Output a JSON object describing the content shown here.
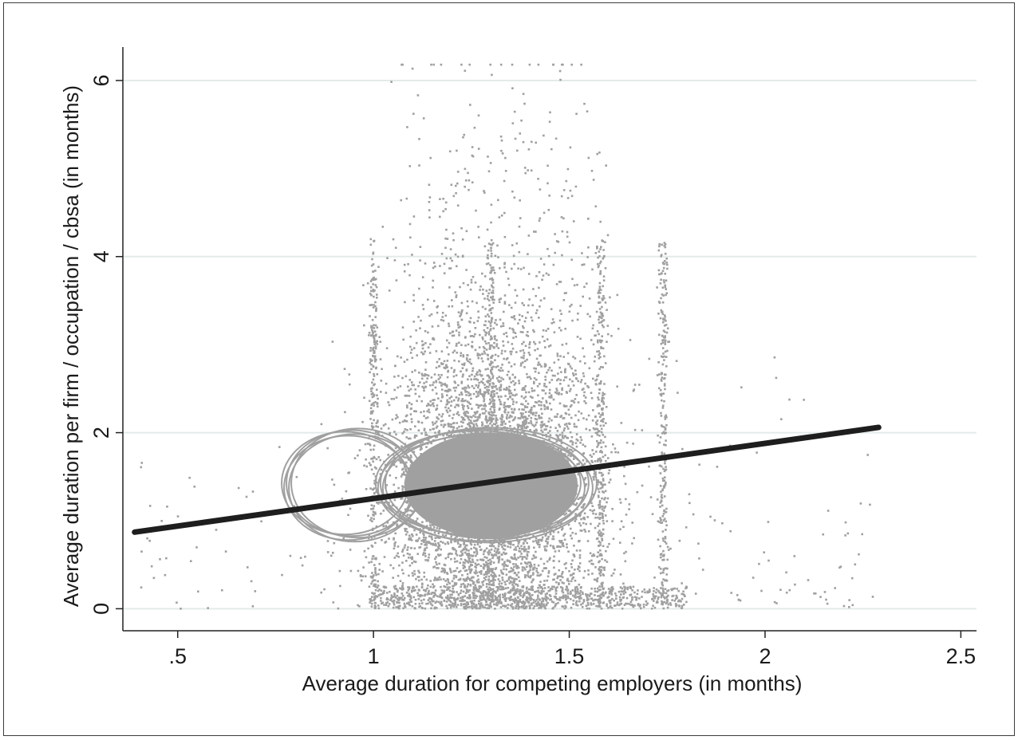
{
  "chart_data": {
    "type": "scatter",
    "title": "",
    "xlabel": "Average duration for competing employers (in months)",
    "ylabel": "Average duration per firm / occupation / cbsa (in months)",
    "xlim": [
      0.36,
      2.54
    ],
    "ylim": [
      -0.25,
      6.38
    ],
    "x_ticks": [
      {
        "value": 0.5,
        "label": ".5"
      },
      {
        "value": 1,
        "label": "1"
      },
      {
        "value": 1.5,
        "label": "1.5"
      },
      {
        "value": 2,
        "label": "2"
      },
      {
        "value": 2.5,
        "label": "2.5"
      }
    ],
    "y_ticks": [
      {
        "value": 0,
        "label": "0"
      },
      {
        "value": 2,
        "label": "2"
      },
      {
        "value": 4,
        "label": "4"
      },
      {
        "value": 6,
        "label": "6"
      }
    ],
    "grid": "horizontal",
    "colors": {
      "points": "#a0a0a0",
      "fit_line": "#1e1e1e",
      "grid": "#e3ebea",
      "axis": "#222222"
    },
    "series": [
      {
        "kind": "scatter",
        "point_count_approx": 40000,
        "x_range": [
          0.4,
          2.29
        ],
        "y_range": [
          0,
          6.18
        ],
        "dense_core": {
          "x_center": 1.3,
          "x_spread": 0.13,
          "y_center": 1.4,
          "y_spread": 0.9
        },
        "vertical_streaks_x": [
          1.0,
          1.3,
          1.58,
          1.74
        ],
        "hollow_markers": [
          {
            "x": 0.96,
            "y": 1.4,
            "rx": 0.17,
            "ry": 0.62
          },
          {
            "x": 1.3,
            "y": 1.4,
            "rx": 0.27,
            "ry": 0.63
          }
        ]
      },
      {
        "kind": "linear_fit",
        "x": [
          0.39,
          2.29
        ],
        "y": [
          0.87,
          2.06
        ]
      }
    ]
  }
}
